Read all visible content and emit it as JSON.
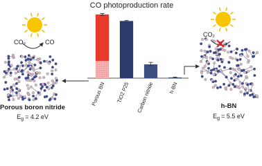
{
  "chart_data": {
    "type": "bar",
    "title": "CO photoproduction rate",
    "categories": [
      "Porous BN",
      "TiO2 P25",
      "Carbon nitride",
      "h-BN"
    ],
    "series": [
      {
        "color": "#f4a3a3",
        "values": [
          26,
          null,
          null,
          null
        ]
      },
      {
        "colors": [
          "#e8392b",
          "#2b3a6b",
          "#3e5080",
          "#2b3a6b"
        ],
        "values": [
          71,
          87,
          21,
          1
        ]
      }
    ],
    "errors": [
      1.5,
      1,
      3,
      0.5
    ],
    "ylim": [
      0,
      100
    ],
    "annotations": {
      "left": {
        "reactant": "CO₂",
        "product": "CO",
        "name": "Porous boron nitride",
        "gap_symbol": "E",
        "gap_sub": "g",
        "gap_value": "= 4.2 eV"
      },
      "right": {
        "reactant": "CO₂",
        "name": "h-BN",
        "gap_symbol": "E",
        "gap_sub": "g",
        "gap_value": "= 5.5 eV"
      }
    }
  }
}
